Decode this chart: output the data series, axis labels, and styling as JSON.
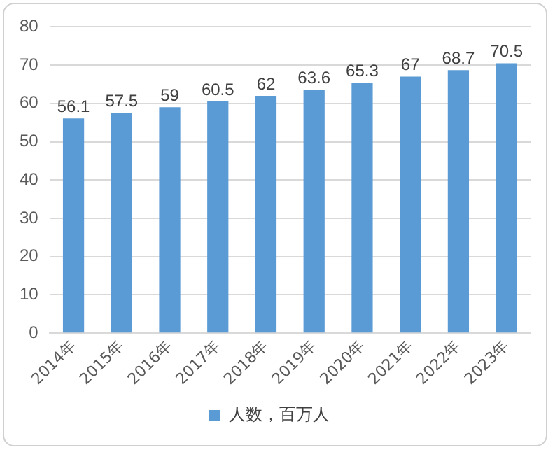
{
  "chart_data": {
    "type": "bar",
    "categories": [
      "2014年",
      "2015年",
      "2016年",
      "2017年",
      "2018年",
      "2019年",
      "2020年",
      "2021年",
      "2022年",
      "2023年"
    ],
    "series": [
      {
        "name": "人数，百万人",
        "color": "#5b9bd5",
        "values": [
          56.1,
          57.5,
          59,
          60.5,
          62,
          63.6,
          65.3,
          67,
          68.7,
          70.5
        ]
      }
    ],
    "ylim": [
      0,
      80
    ],
    "yticks": [
      0,
      10,
      20,
      30,
      40,
      50,
      60,
      70,
      80
    ],
    "grid": "y",
    "legend": "bottom",
    "data_labels": true
  }
}
